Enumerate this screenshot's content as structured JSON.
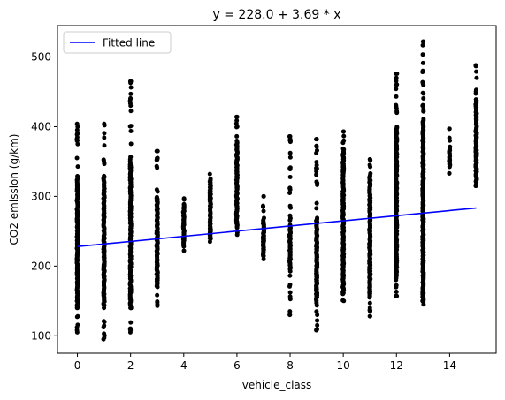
{
  "chart_data": {
    "type": "scatter",
    "title": "y = 228.0 + 3.69 * x",
    "xlabel": "vehicle_class",
    "ylabel": "CO2 emission (g/km)",
    "xlim": [
      -0.75,
      15.75
    ],
    "ylim": [
      75,
      545
    ],
    "x_ticks": [
      0,
      2,
      4,
      6,
      8,
      10,
      12,
      14
    ],
    "y_ticks": [
      100,
      200,
      300,
      400,
      500
    ],
    "grid": false,
    "legend": {
      "position": "top-left",
      "entries": [
        "Fitted line"
      ]
    },
    "colors": {
      "points": "#000000",
      "line": "#0000ff"
    },
    "fitted_line": {
      "name": "Fitted line",
      "intercept": 228.0,
      "slope": 3.69,
      "x_range": [
        0,
        15
      ]
    },
    "point_groups": [
      {
        "x": 0,
        "min": 105,
        "max": 404,
        "dense_min": 140,
        "dense_max": 330,
        "extra": [
          108,
          112,
          375,
          390,
          400
        ]
      },
      {
        "x": 1,
        "min": 95,
        "max": 404,
        "dense_min": 150,
        "dense_max": 330,
        "extra": [
          97,
          103,
          120,
          140
        ]
      },
      {
        "x": 2,
        "min": 105,
        "max": 465,
        "dense_min": 140,
        "dense_max": 350,
        "extra": [
          108,
          430,
          437,
          465
        ]
      },
      {
        "x": 3,
        "min": 143,
        "max": 365,
        "dense_min": 170,
        "dense_max": 300,
        "extra": [
          145,
          355,
          365
        ]
      },
      {
        "x": 4,
        "min": 222,
        "max": 297,
        "dense_min": 230,
        "dense_max": 290,
        "extra": []
      },
      {
        "x": 5,
        "min": 235,
        "max": 332,
        "dense_min": 240,
        "dense_max": 325,
        "extra": []
      },
      {
        "x": 6,
        "min": 245,
        "max": 414,
        "dense_min": 255,
        "dense_max": 380,
        "extra": [
          400,
          414
        ]
      },
      {
        "x": 7,
        "min": 210,
        "max": 300,
        "dense_min": 215,
        "dense_max": 265,
        "extra": [
          285,
          300
        ]
      },
      {
        "x": 8,
        "min": 130,
        "max": 386,
        "dense_min": 200,
        "dense_max": 260,
        "extra": [
          130,
          135,
          305,
          312,
          380,
          386
        ]
      },
      {
        "x": 9,
        "min": 108,
        "max": 382,
        "dense_min": 150,
        "dense_max": 270,
        "extra": [
          108,
          115,
          130,
          340,
          382
        ]
      },
      {
        "x": 10,
        "min": 150,
        "max": 393,
        "dense_min": 160,
        "dense_max": 365,
        "extra": [
          380,
          393
        ]
      },
      {
        "x": 11,
        "min": 128,
        "max": 353,
        "dense_min": 155,
        "dense_max": 330,
        "extra": [
          128,
          135,
          140,
          345,
          353
        ]
      },
      {
        "x": 12,
        "min": 157,
        "max": 476,
        "dense_min": 180,
        "dense_max": 400,
        "extra": [
          157,
          420,
          460,
          470,
          476
        ]
      },
      {
        "x": 13,
        "min": 145,
        "max": 522,
        "dense_min": 150,
        "dense_max": 410,
        "extra": [
          430,
          460,
          480,
          522
        ]
      },
      {
        "x": 14,
        "min": 333,
        "max": 397,
        "dense_min": 345,
        "dense_max": 370,
        "extra": [
          333,
          380,
          397
        ]
      },
      {
        "x": 15,
        "min": 315,
        "max": 488,
        "dense_min": 320,
        "dense_max": 440,
        "extra": [
          315,
          470,
          488
        ]
      }
    ]
  }
}
